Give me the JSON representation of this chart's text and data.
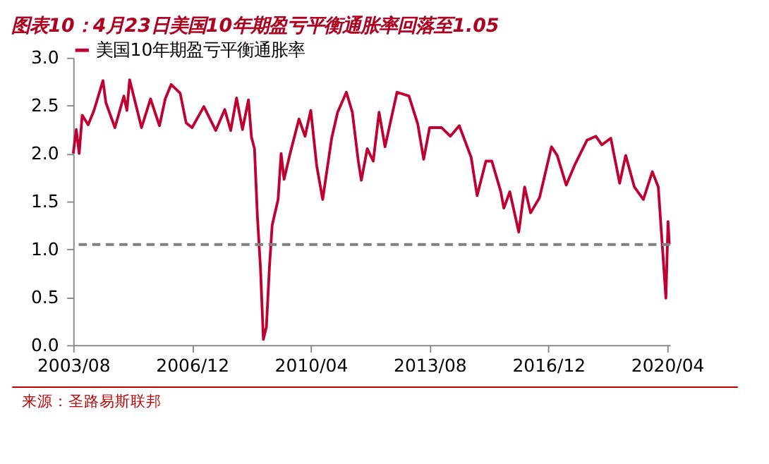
{
  "chart_data": {
    "type": "line",
    "title": "图表10：4月23日美国10年期盈亏平衡通胀率回落至1.05",
    "annotations": [
      "来源：圣路易斯联邦"
    ],
    "x": [
      "2003-08",
      "2003-09",
      "2003-10",
      "2003-11",
      "2004-01",
      "2004-03",
      "2004-06",
      "2004-07",
      "2004-10",
      "2005-01",
      "2005-02",
      "2005-03",
      "2005-07",
      "2005-10",
      "2006-01",
      "2006-03",
      "2006-05",
      "2006-08",
      "2006-10",
      "2006-12",
      "2007-04",
      "2007-08",
      "2007-11",
      "2008-01",
      "2008-03",
      "2008-05",
      "2008-07",
      "2008-08",
      "2008-09",
      "2008-10",
      "2008-11",
      "2008-12",
      "2009-01",
      "2009-02",
      "2009-03",
      "2009-05",
      "2009-06",
      "2009-07",
      "2009-09",
      "2009-12",
      "2010-02",
      "2010-04",
      "2010-06",
      "2010-08",
      "2010-11",
      "2011-01",
      "2011-04",
      "2011-06",
      "2011-08",
      "2011-09",
      "2011-11",
      "2012-01",
      "2012-03",
      "2012-05",
      "2012-09",
      "2013-01",
      "2013-04",
      "2013-06",
      "2013-08",
      "2013-12",
      "2014-03",
      "2014-06",
      "2014-10",
      "2014-12",
      "2015-03",
      "2015-05",
      "2015-08",
      "2015-09",
      "2015-11",
      "2016-02",
      "2016-04",
      "2016-06",
      "2016-09",
      "2017-01",
      "2017-03",
      "2017-06",
      "2017-09",
      "2018-01",
      "2018-04",
      "2018-06",
      "2018-09",
      "2018-12",
      "2019-02",
      "2019-05",
      "2019-08",
      "2019-11",
      "2020-01",
      "2020-03-19",
      "2020-04-10",
      "2020-04-23"
    ],
    "series": [
      {
        "name": "美国10年期盈亏平衡通胀率",
        "color": "#c00030",
        "values": [
          2.0,
          2.25,
          2.0,
          2.4,
          2.3,
          2.45,
          2.76,
          2.53,
          2.27,
          2.6,
          2.45,
          2.77,
          2.27,
          2.57,
          2.29,
          2.57,
          2.72,
          2.63,
          2.32,
          2.27,
          2.49,
          2.24,
          2.46,
          2.24,
          2.58,
          2.25,
          2.56,
          2.17,
          2.05,
          1.34,
          0.81,
          0.06,
          0.19,
          0.81,
          1.25,
          1.52,
          2.0,
          1.73,
          2.0,
          2.36,
          2.18,
          2.45,
          1.87,
          1.52,
          2.16,
          2.43,
          2.64,
          2.43,
          1.92,
          1.72,
          2.05,
          1.92,
          2.43,
          2.07,
          2.64,
          2.6,
          2.31,
          1.94,
          2.27,
          2.27,
          2.18,
          2.29,
          1.96,
          1.56,
          1.92,
          1.92,
          1.6,
          1.43,
          1.6,
          1.18,
          1.65,
          1.38,
          1.54,
          2.07,
          1.98,
          1.67,
          1.89,
          2.14,
          2.18,
          2.09,
          2.16,
          1.69,
          1.98,
          1.65,
          1.52,
          1.81,
          1.65,
          0.49,
          1.29,
          1.05
        ]
      }
    ],
    "xlim": [
      "2003-08",
      "2020-04-30"
    ],
    "xticks": [
      {
        "value": "2003-08",
        "label": "2003/08"
      },
      {
        "value": "2006-12",
        "label": "2006/12"
      },
      {
        "value": "2010-04",
        "label": "2010/04"
      },
      {
        "value": "2013-08",
        "label": "2013/08"
      },
      {
        "value": "2016-12",
        "label": "2016/12"
      },
      {
        "value": "2020-04",
        "label": "2020/04"
      }
    ],
    "ylim": [
      0,
      3
    ],
    "yticks": [
      {
        "value": 0,
        "label": "0.0"
      },
      {
        "value": 0.5,
        "label": "0.5"
      },
      {
        "value": 1,
        "label": "1.0"
      },
      {
        "value": 1.5,
        "label": "1.5"
      },
      {
        "value": 2,
        "label": "2.0"
      },
      {
        "value": 2.5,
        "label": "2.5"
      },
      {
        "value": 3,
        "label": "3.0"
      }
    ],
    "ref_lines": [
      {
        "axis": "y",
        "value": 1.05,
        "color": "#808080",
        "line_style": "dashed"
      }
    ],
    "grid": false,
    "legend": "top",
    "marker": "none",
    "line_style": "solid"
  }
}
